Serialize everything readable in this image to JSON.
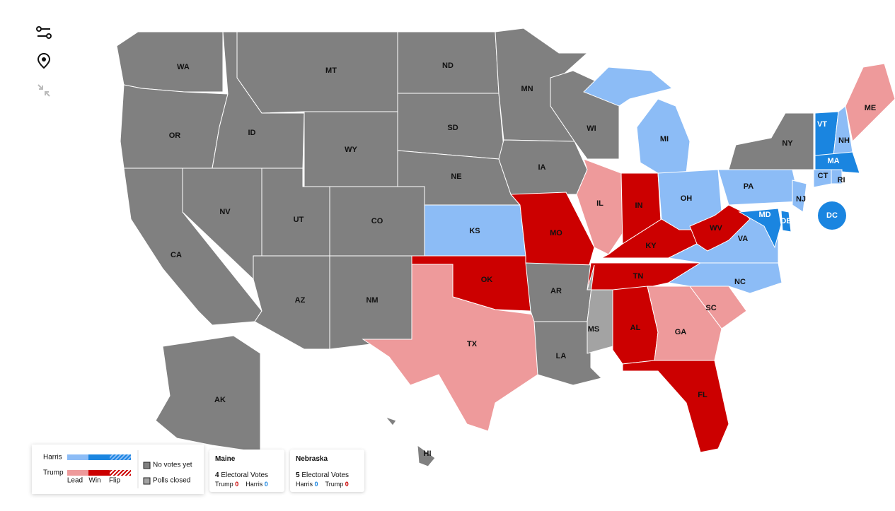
{
  "map": {
    "states": [
      {
        "label": "WA",
        "color": "#808080"
      },
      {
        "label": "OR",
        "color": "#808080"
      },
      {
        "label": "CA",
        "color": "#808080"
      },
      {
        "label": "ID",
        "color": "#808080"
      },
      {
        "label": "NV",
        "color": "#808080"
      },
      {
        "label": "MT",
        "color": "#808080"
      },
      {
        "label": "WY",
        "color": "#808080"
      },
      {
        "label": "UT",
        "color": "#808080"
      },
      {
        "label": "CO",
        "color": "#808080"
      },
      {
        "label": "AZ",
        "color": "#808080"
      },
      {
        "label": "NM",
        "color": "#808080"
      },
      {
        "label": "ND",
        "color": "#808080"
      },
      {
        "label": "SD",
        "color": "#808080"
      },
      {
        "label": "NE",
        "color": "#808080"
      },
      {
        "label": "KS",
        "color": "#8cbcf6"
      },
      {
        "label": "OK",
        "color": "#cc0000"
      },
      {
        "label": "TX",
        "color": "#ee9a9b"
      },
      {
        "label": "MN",
        "color": "#808080"
      },
      {
        "label": "IA",
        "color": "#808080"
      },
      {
        "label": "MO",
        "color": "#cc0000"
      },
      {
        "label": "AR",
        "color": "#808080"
      },
      {
        "label": "LA",
        "color": "#808080"
      },
      {
        "label": "WI",
        "color": "#808080"
      },
      {
        "label": "IL",
        "color": "#ee9a9b"
      },
      {
        "label": "IN",
        "color": "#cc0000"
      },
      {
        "label": "MI",
        "color": "#8cbcf6"
      },
      {
        "label": "OH",
        "color": "#8cbcf6"
      },
      {
        "label": "KY",
        "color": "#cc0000"
      },
      {
        "label": "TN",
        "color": "#cc0000"
      },
      {
        "label": "MS",
        "color": "#a3a3a3"
      },
      {
        "label": "AL",
        "color": "#cc0000"
      },
      {
        "label": "GA",
        "color": "#ee9a9b"
      },
      {
        "label": "FL",
        "color": "#cc0000"
      },
      {
        "label": "SC",
        "color": "#ee9a9b"
      },
      {
        "label": "NC",
        "color": "#8cbcf6"
      },
      {
        "label": "VA",
        "color": "#8cbcf6"
      },
      {
        "label": "WV",
        "color": "#cc0000"
      },
      {
        "label": "PA",
        "color": "#8cbcf6"
      },
      {
        "label": "NY",
        "color": "#808080"
      },
      {
        "label": "NJ",
        "color": "#8cbcf6"
      },
      {
        "label": "MD",
        "color": "#1a85e0"
      },
      {
        "label": "DE",
        "color": "#1a85e0"
      },
      {
        "label": "VT",
        "color": "#1a85e0"
      },
      {
        "label": "NH",
        "color": "#8cbcf6"
      },
      {
        "label": "ME",
        "color": "#ee9a9b"
      },
      {
        "label": "MA",
        "color": "#1a85e0"
      },
      {
        "label": "CT",
        "color": "#8cbcf6"
      },
      {
        "label": "RI",
        "color": "#8cbcf6"
      },
      {
        "label": "DC",
        "color": "#1a85e0"
      },
      {
        "label": "AK",
        "color": "#808080"
      },
      {
        "label": "HI",
        "color": "#808080"
      }
    ]
  },
  "legend": {
    "rows": [
      {
        "name": "Harris",
        "colors": [
          "#8cbcf6",
          "#1a85e0"
        ]
      },
      {
        "name": "Trump",
        "colors": [
          "#ee9a9b",
          "#cc0000"
        ]
      }
    ],
    "columns": [
      "Lead",
      "Win",
      "Flip"
    ],
    "items": [
      {
        "label": "No votes yet",
        "color": "#808080"
      },
      {
        "label": "Polls closed",
        "color": "#a3a3a3"
      }
    ]
  },
  "cards": [
    {
      "title": "Maine",
      "votes": 4,
      "votes_label": "Electoral Votes",
      "candidates": [
        {
          "name": "Trump",
          "count": 0,
          "color": "#cc0000"
        },
        {
          "name": "Harris",
          "count": 0,
          "color": "#1a85e0"
        }
      ]
    },
    {
      "title": "Nebraska",
      "votes": 5,
      "votes_label": "Electoral Votes",
      "candidates": [
        {
          "name": "Harris",
          "count": 0,
          "color": "#1a85e0"
        },
        {
          "name": "Trump",
          "count": 0,
          "color": "#cc0000"
        }
      ]
    }
  ]
}
